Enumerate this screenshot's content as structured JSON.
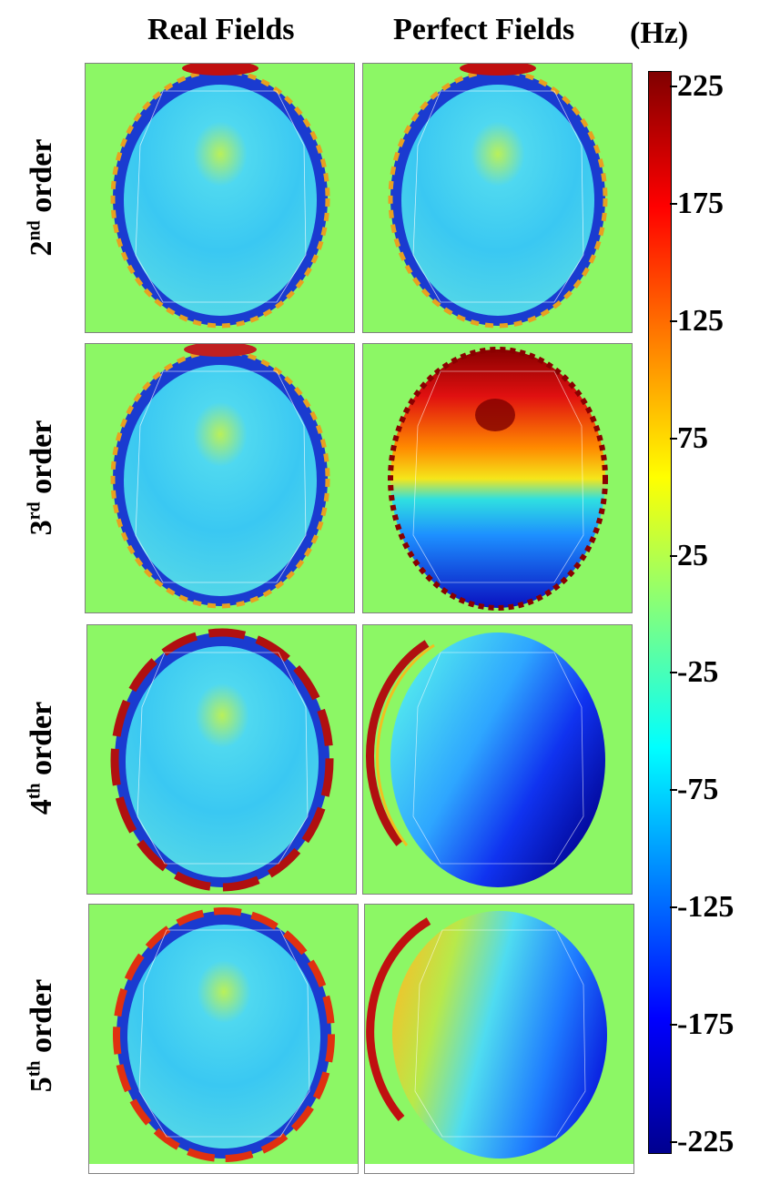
{
  "columns": [
    "Real Fields",
    "Perfect Fields"
  ],
  "unit": "(Hz)",
  "rows": [
    {
      "number": "2",
      "sup": "nd",
      "rest": " order"
    },
    {
      "number": "3",
      "sup": "rd",
      "rest": " order"
    },
    {
      "number": "4",
      "sup": "th",
      "rest": " order"
    },
    {
      "number": "5",
      "sup": "th",
      "rest": " order"
    }
  ],
  "colorbar": {
    "ticks": [
      "225",
      "175",
      "125",
      "75",
      "25",
      "-25",
      "-75",
      "-125",
      "-175",
      "-225"
    ],
    "colormap": "jet",
    "background_color": "#8cf765"
  },
  "panels": [
    {
      "row": "2nd order",
      "column": "Real Fields",
      "pattern": "uniform-light-blue"
    },
    {
      "row": "2nd order",
      "column": "Perfect Fields",
      "pattern": "uniform-light-blue"
    },
    {
      "row": "3rd order",
      "column": "Real Fields",
      "pattern": "uniform-light-blue"
    },
    {
      "row": "3rd order",
      "column": "Perfect Fields",
      "pattern": "red-top-blue-bottom"
    },
    {
      "row": "4th order",
      "column": "Real Fields",
      "pattern": "uniform-light-blue"
    },
    {
      "row": "4th order",
      "column": "Perfect Fields",
      "pattern": "cyan-left-darkblue-right"
    },
    {
      "row": "5th order",
      "column": "Real Fields",
      "pattern": "uniform-light-blue"
    },
    {
      "row": "5th order",
      "column": "Perfect Fields",
      "pattern": "yellow-left-blue-right"
    }
  ]
}
